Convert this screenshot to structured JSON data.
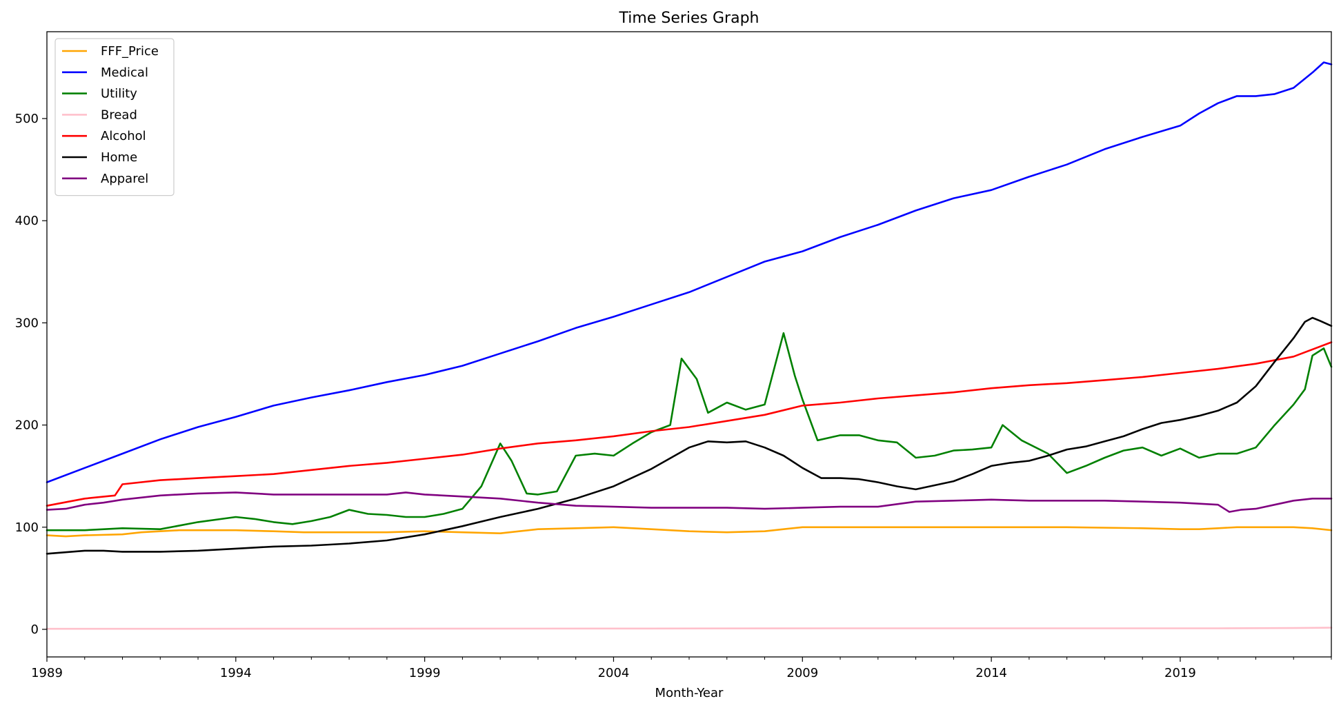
{
  "chart_data": {
    "type": "line",
    "title": "Time Series Graph",
    "xlabel": "Month-Year",
    "ylabel": "",
    "xlim": [
      1989.0,
      2023.0
    ],
    "ylim": [
      -27,
      585
    ],
    "x_major_ticks": [
      1989,
      1994,
      1999,
      2004,
      2009,
      2014,
      2019
    ],
    "y_ticks": [
      0,
      100,
      200,
      300,
      400,
      500
    ],
    "grid": false,
    "legend_position": "upper-left",
    "series": [
      {
        "name": "FFF_Price",
        "color": "#FFA500",
        "points": [
          [
            1989.0,
            92
          ],
          [
            1989.5,
            91
          ],
          [
            1990.0,
            92
          ],
          [
            1991.0,
            93
          ],
          [
            1991.5,
            95
          ],
          [
            1992.0,
            96
          ],
          [
            1992.5,
            97
          ],
          [
            1993.0,
            97
          ],
          [
            1994.0,
            97
          ],
          [
            1995.0,
            96
          ],
          [
            1995.8,
            95
          ],
          [
            1997.0,
            95
          ],
          [
            1998.0,
            95
          ],
          [
            1999.0,
            96
          ],
          [
            2000.0,
            95
          ],
          [
            2001.0,
            94
          ],
          [
            2001.5,
            96
          ],
          [
            2002.0,
            98
          ],
          [
            2003.0,
            99
          ],
          [
            2004.0,
            100
          ],
          [
            2005.0,
            98
          ],
          [
            2006.0,
            96
          ],
          [
            2007.0,
            95
          ],
          [
            2008.0,
            96
          ],
          [
            2008.5,
            98
          ],
          [
            2009.0,
            100
          ],
          [
            2010.0,
            100
          ],
          [
            2012.0,
            100
          ],
          [
            2014.0,
            100
          ],
          [
            2016.0,
            100
          ],
          [
            2018.0,
            99
          ],
          [
            2019.0,
            98
          ],
          [
            2019.5,
            98
          ],
          [
            2020.0,
            99
          ],
          [
            2020.5,
            100
          ],
          [
            2021.0,
            100
          ],
          [
            2022.0,
            100
          ],
          [
            2022.5,
            99
          ],
          [
            2023.0,
            97
          ]
        ]
      },
      {
        "name": "Medical",
        "color": "#0000FF",
        "points": [
          [
            1989.0,
            144
          ],
          [
            1990.0,
            158
          ],
          [
            1991.0,
            172
          ],
          [
            1992.0,
            186
          ],
          [
            1993.0,
            198
          ],
          [
            1994.0,
            208
          ],
          [
            1995.0,
            219
          ],
          [
            1996.0,
            227
          ],
          [
            1997.0,
            234
          ],
          [
            1998.0,
            242
          ],
          [
            1999.0,
            249
          ],
          [
            2000.0,
            258
          ],
          [
            2001.0,
            270
          ],
          [
            2002.0,
            282
          ],
          [
            2003.0,
            295
          ],
          [
            2004.0,
            306
          ],
          [
            2005.0,
            318
          ],
          [
            2006.0,
            330
          ],
          [
            2007.0,
            345
          ],
          [
            2008.0,
            360
          ],
          [
            2009.0,
            370
          ],
          [
            2010.0,
            384
          ],
          [
            2011.0,
            396
          ],
          [
            2012.0,
            410
          ],
          [
            2013.0,
            422
          ],
          [
            2014.0,
            430
          ],
          [
            2015.0,
            443
          ],
          [
            2016.0,
            455
          ],
          [
            2017.0,
            470
          ],
          [
            2018.0,
            482
          ],
          [
            2019.0,
            493
          ],
          [
            2019.5,
            505
          ],
          [
            2020.0,
            515
          ],
          [
            2020.5,
            522
          ],
          [
            2021.0,
            522
          ],
          [
            2021.5,
            524
          ],
          [
            2022.0,
            530
          ],
          [
            2022.5,
            545
          ],
          [
            2022.8,
            555
          ],
          [
            2023.0,
            553
          ]
        ]
      },
      {
        "name": "Utility",
        "color": "#008000",
        "points": [
          [
            1989.0,
            97
          ],
          [
            1990.0,
            97
          ],
          [
            1991.0,
            99
          ],
          [
            1992.0,
            98
          ],
          [
            1993.0,
            105
          ],
          [
            1994.0,
            110
          ],
          [
            1994.5,
            108
          ],
          [
            1995.0,
            105
          ],
          [
            1995.5,
            103
          ],
          [
            1996.0,
            106
          ],
          [
            1996.5,
            110
          ],
          [
            1997.0,
            117
          ],
          [
            1997.5,
            113
          ],
          [
            1998.0,
            112
          ],
          [
            1998.5,
            110
          ],
          [
            1999.0,
            110
          ],
          [
            1999.5,
            113
          ],
          [
            2000.0,
            118
          ],
          [
            2000.5,
            140
          ],
          [
            2001.0,
            182
          ],
          [
            2001.3,
            165
          ],
          [
            2001.7,
            133
          ],
          [
            2002.0,
            132
          ],
          [
            2002.5,
            135
          ],
          [
            2003.0,
            170
          ],
          [
            2003.5,
            172
          ],
          [
            2004.0,
            170
          ],
          [
            2004.5,
            182
          ],
          [
            2005.0,
            193
          ],
          [
            2005.5,
            200
          ],
          [
            2005.8,
            265
          ],
          [
            2006.2,
            245
          ],
          [
            2006.5,
            212
          ],
          [
            2007.0,
            222
          ],
          [
            2007.5,
            215
          ],
          [
            2008.0,
            220
          ],
          [
            2008.5,
            290
          ],
          [
            2008.8,
            248
          ],
          [
            2009.0,
            225
          ],
          [
            2009.4,
            185
          ],
          [
            2010.0,
            190
          ],
          [
            2010.5,
            190
          ],
          [
            2011.0,
            185
          ],
          [
            2011.5,
            183
          ],
          [
            2012.0,
            168
          ],
          [
            2012.5,
            170
          ],
          [
            2013.0,
            175
          ],
          [
            2013.5,
            176
          ],
          [
            2014.0,
            178
          ],
          [
            2014.3,
            200
          ],
          [
            2014.8,
            185
          ],
          [
            2015.5,
            172
          ],
          [
            2016.0,
            153
          ],
          [
            2016.5,
            160
          ],
          [
            2017.0,
            168
          ],
          [
            2017.5,
            175
          ],
          [
            2018.0,
            178
          ],
          [
            2018.5,
            170
          ],
          [
            2019.0,
            177
          ],
          [
            2019.5,
            168
          ],
          [
            2020.0,
            172
          ],
          [
            2020.5,
            172
          ],
          [
            2021.0,
            178
          ],
          [
            2021.5,
            200
          ],
          [
            2022.0,
            220
          ],
          [
            2022.3,
            235
          ],
          [
            2022.5,
            268
          ],
          [
            2022.8,
            275
          ],
          [
            2023.0,
            257
          ]
        ]
      },
      {
        "name": "Bread",
        "color": "#FFC0CB",
        "points": [
          [
            1989.0,
            0.5
          ],
          [
            1995.0,
            0.6
          ],
          [
            2000.0,
            0.7
          ],
          [
            2005.0,
            0.8
          ],
          [
            2010.0,
            1.0
          ],
          [
            2015.0,
            1.0
          ],
          [
            2020.0,
            1.0
          ],
          [
            2022.0,
            1.3
          ],
          [
            2023.0,
            1.6
          ]
        ]
      },
      {
        "name": "Alcohol",
        "color": "#FF0000",
        "points": [
          [
            1989.0,
            121
          ],
          [
            1990.0,
            128
          ],
          [
            1990.8,
            131
          ],
          [
            1991.0,
            142
          ],
          [
            1992.0,
            146
          ],
          [
            1993.0,
            148
          ],
          [
            1994.0,
            150
          ],
          [
            1995.0,
            152
          ],
          [
            1996.0,
            156
          ],
          [
            1997.0,
            160
          ],
          [
            1998.0,
            163
          ],
          [
            1999.0,
            167
          ],
          [
            2000.0,
            171
          ],
          [
            2001.0,
            177
          ],
          [
            2002.0,
            182
          ],
          [
            2003.0,
            185
          ],
          [
            2004.0,
            189
          ],
          [
            2005.0,
            194
          ],
          [
            2006.0,
            198
          ],
          [
            2007.0,
            204
          ],
          [
            2008.0,
            210
          ],
          [
            2009.0,
            219
          ],
          [
            2010.0,
            222
          ],
          [
            2011.0,
            226
          ],
          [
            2012.0,
            229
          ],
          [
            2013.0,
            232
          ],
          [
            2014.0,
            236
          ],
          [
            2015.0,
            239
          ],
          [
            2016.0,
            241
          ],
          [
            2017.0,
            244
          ],
          [
            2018.0,
            247
          ],
          [
            2019.0,
            251
          ],
          [
            2020.0,
            255
          ],
          [
            2021.0,
            260
          ],
          [
            2022.0,
            267
          ],
          [
            2023.0,
            281
          ]
        ]
      },
      {
        "name": "Home",
        "color": "#000000",
        "points": [
          [
            1989.0,
            74
          ],
          [
            1990.0,
            77
          ],
          [
            1990.5,
            77
          ],
          [
            1991.0,
            76
          ],
          [
            1992.0,
            76
          ],
          [
            1993.0,
            77
          ],
          [
            1994.0,
            79
          ],
          [
            1995.0,
            81
          ],
          [
            1996.0,
            82
          ],
          [
            1997.0,
            84
          ],
          [
            1998.0,
            87
          ],
          [
            1999.0,
            93
          ],
          [
            2000.0,
            101
          ],
          [
            2001.0,
            110
          ],
          [
            2002.0,
            118
          ],
          [
            2003.0,
            128
          ],
          [
            2004.0,
            140
          ],
          [
            2005.0,
            157
          ],
          [
            2006.0,
            178
          ],
          [
            2006.5,
            184
          ],
          [
            2007.0,
            183
          ],
          [
            2007.5,
            184
          ],
          [
            2008.0,
            178
          ],
          [
            2008.5,
            170
          ],
          [
            2009.0,
            158
          ],
          [
            2009.5,
            148
          ],
          [
            2010.0,
            148
          ],
          [
            2010.5,
            147
          ],
          [
            2011.0,
            144
          ],
          [
            2011.5,
            140
          ],
          [
            2012.0,
            137
          ],
          [
            2012.5,
            141
          ],
          [
            2013.0,
            145
          ],
          [
            2013.5,
            152
          ],
          [
            2014.0,
            160
          ],
          [
            2014.5,
            163
          ],
          [
            2015.0,
            165
          ],
          [
            2015.5,
            170
          ],
          [
            2016.0,
            176
          ],
          [
            2016.5,
            179
          ],
          [
            2017.0,
            184
          ],
          [
            2017.5,
            189
          ],
          [
            2018.0,
            196
          ],
          [
            2018.5,
            202
          ],
          [
            2019.0,
            205
          ],
          [
            2019.5,
            209
          ],
          [
            2020.0,
            214
          ],
          [
            2020.5,
            222
          ],
          [
            2021.0,
            238
          ],
          [
            2021.5,
            262
          ],
          [
            2022.0,
            285
          ],
          [
            2022.3,
            301
          ],
          [
            2022.5,
            305
          ],
          [
            2022.7,
            302
          ],
          [
            2023.0,
            297
          ]
        ]
      },
      {
        "name": "Apparel",
        "color": "#800080",
        "points": [
          [
            1989.0,
            117
          ],
          [
            1989.5,
            118
          ],
          [
            1990.0,
            122
          ],
          [
            1990.5,
            124
          ],
          [
            1991.0,
            127
          ],
          [
            1992.0,
            131
          ],
          [
            1993.0,
            133
          ],
          [
            1994.0,
            134
          ],
          [
            1995.0,
            132
          ],
          [
            1996.0,
            132
          ],
          [
            1997.0,
            132
          ],
          [
            1998.0,
            132
          ],
          [
            1998.5,
            134
          ],
          [
            1999.0,
            132
          ],
          [
            2000.0,
            130
          ],
          [
            2001.0,
            128
          ],
          [
            2002.0,
            124
          ],
          [
            2003.0,
            121
          ],
          [
            2004.0,
            120
          ],
          [
            2005.0,
            119
          ],
          [
            2006.0,
            119
          ],
          [
            2007.0,
            119
          ],
          [
            2008.0,
            118
          ],
          [
            2009.0,
            119
          ],
          [
            2010.0,
            120
          ],
          [
            2011.0,
            120
          ],
          [
            2012.0,
            125
          ],
          [
            2013.0,
            126
          ],
          [
            2014.0,
            127
          ],
          [
            2015.0,
            126
          ],
          [
            2016.0,
            126
          ],
          [
            2017.0,
            126
          ],
          [
            2018.0,
            125
          ],
          [
            2019.0,
            124
          ],
          [
            2020.0,
            122
          ],
          [
            2020.3,
            115
          ],
          [
            2020.6,
            117
          ],
          [
            2021.0,
            118
          ],
          [
            2021.5,
            122
          ],
          [
            2022.0,
            126
          ],
          [
            2022.5,
            128
          ],
          [
            2023.0,
            128
          ]
        ]
      }
    ]
  }
}
